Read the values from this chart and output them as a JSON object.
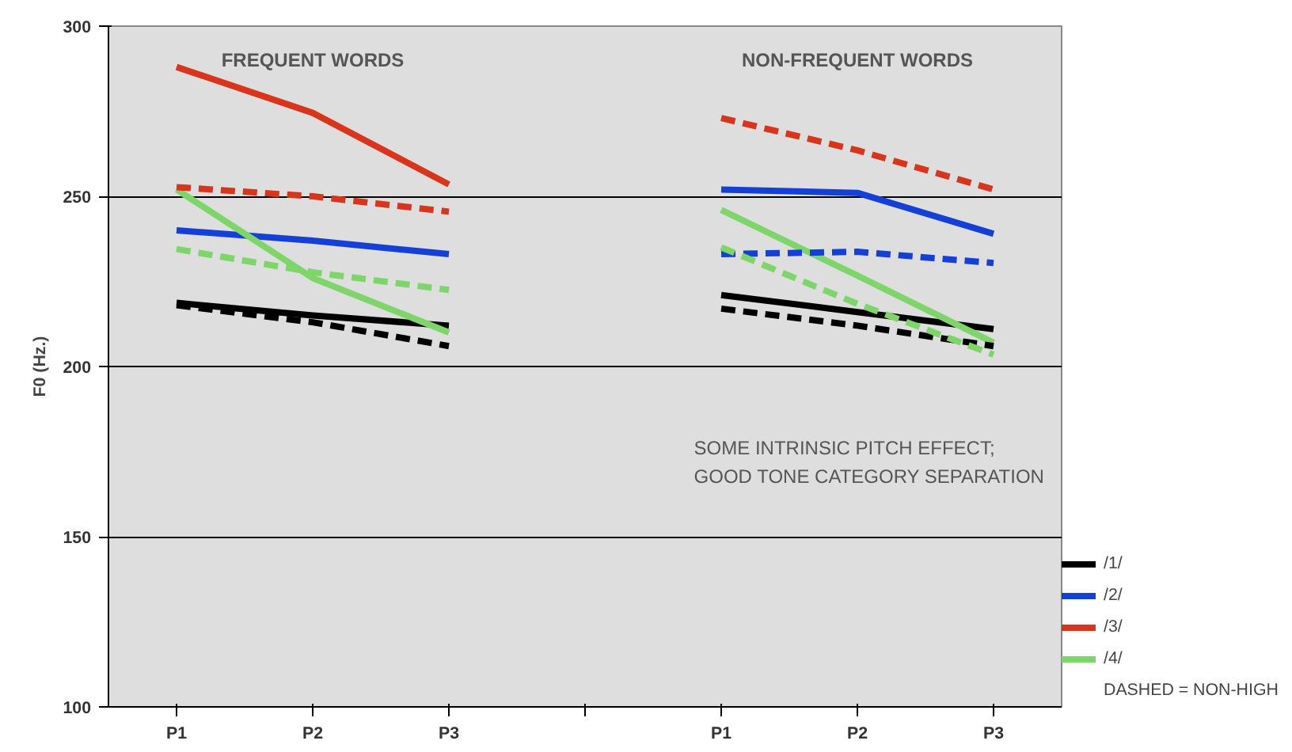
{
  "chart_data": {
    "type": "line",
    "ylabel": "F0 (Hz.)",
    "categories": [
      "P1",
      "P2",
      "P3",
      null,
      "P1",
      "P2",
      "P3"
    ],
    "ylim": [
      100,
      300
    ],
    "yticks": [
      100,
      150,
      200,
      250,
      300
    ],
    "grid": "y",
    "legend": "right",
    "marker": "none",
    "annotations": [
      "FREQUENT WORDS",
      "NON-FREQUENT WORDS",
      "SOME INTRINSIC PITCH EFFECT; GOOD TONE CATEGORY SEPARATION",
      "DASHED = NON-HIGH"
    ],
    "series": [
      {
        "name": "/1/",
        "color": "#000000",
        "line_style": "solid",
        "values": [
          218.7,
          215,
          212,
          null,
          221,
          216,
          211
        ]
      },
      {
        "name": "/2/",
        "color": "#1440d8",
        "line_style": "solid",
        "values": [
          240,
          237,
          233,
          null,
          252,
          251,
          239
        ]
      },
      {
        "name": "/3/",
        "color": "#d9341c",
        "line_style": "solid",
        "values": [
          288,
          274.5,
          253.5,
          null,
          null,
          null,
          null
        ]
      },
      {
        "name": "/4/",
        "color": "#7ed66a",
        "line_style": "solid",
        "values": [
          252,
          226,
          210,
          null,
          246,
          226.7,
          207
        ]
      },
      {
        "color": "#000000",
        "line_style": "dashed",
        "values": [
          218,
          213,
          206,
          null,
          217,
          212,
          206
        ]
      },
      {
        "color": "#1440d8",
        "line_style": "dashed",
        "values": [
          null,
          null,
          null,
          null,
          233,
          233.7,
          230.4
        ]
      },
      {
        "color": "#d9341c",
        "line_style": "dashed",
        "values": [
          252.7,
          250,
          245.5,
          null,
          273,
          263.5,
          252
        ]
      },
      {
        "color": "#7ed66a",
        "line_style": "dashed",
        "values": [
          234.5,
          227.7,
          222.5,
          null,
          235,
          218.4,
          203.5
        ]
      }
    ]
  }
}
